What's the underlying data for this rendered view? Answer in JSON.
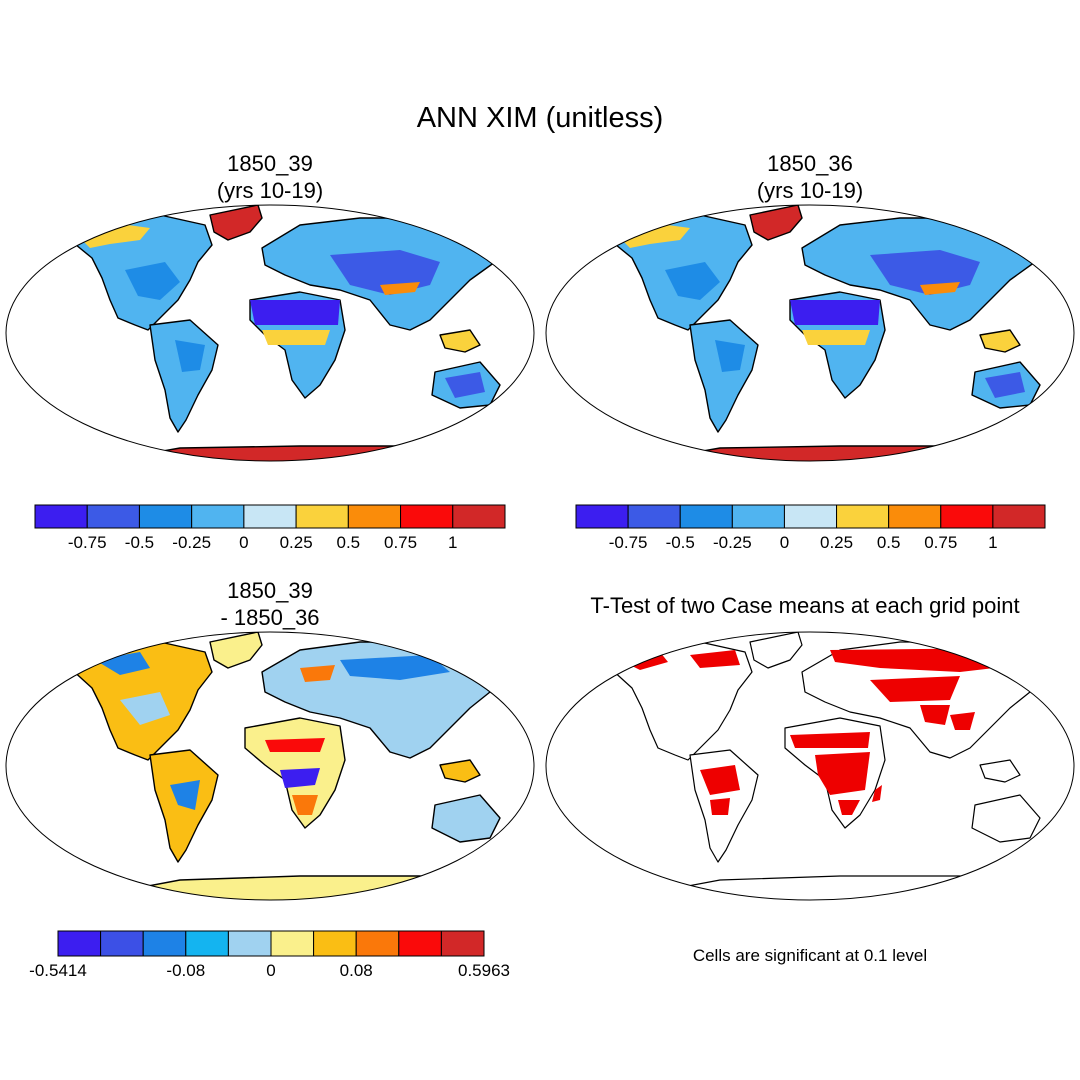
{
  "main_title": "ANN XIM (unitless)",
  "panels": {
    "top_left": {
      "title_line1": "1850_39",
      "title_line2": "(yrs 10-19)"
    },
    "top_right": {
      "title_line1": "1850_36",
      "title_line2": "(yrs 10-19)"
    },
    "bottom_left": {
      "title_line1": "1850_39",
      "title_line2": "- 1850_36"
    },
    "bottom_right": {
      "title": "T-Test of two Case means at each grid point",
      "note": "Cells are significant at 0.1 level"
    }
  },
  "colorbar_abs": {
    "colors": [
      "#3c1ef0",
      "#3c5ae6",
      "#1e8ce6",
      "#50b4f0",
      "#c8e6f5",
      "#fad23c",
      "#fa8c0a",
      "#fa0a0a",
      "#d22828"
    ],
    "tick_labels": [
      "-0.75",
      "-0.5",
      "-0.25",
      "0",
      "0.25",
      "0.5",
      "0.75",
      "1"
    ]
  },
  "colorbar_diff": {
    "colors": [
      "#3c1ef0",
      "#3c50e6",
      "#1e82e6",
      "#14b4f0",
      "#a0d2f0",
      "#faf08c",
      "#fabe14",
      "#fa780a",
      "#fa0a0a",
      "#d22828"
    ],
    "tick_labels": [
      "-0.5414",
      "-0.08",
      "0",
      "0.08",
      "0.5963"
    ]
  },
  "map_colors": {
    "ocean": "#ffffff",
    "coast": "#000000",
    "ttest_significant": "#ee0000"
  }
}
